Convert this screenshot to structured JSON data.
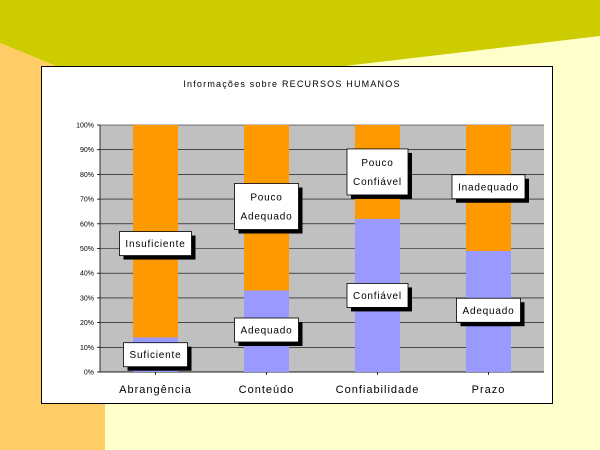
{
  "colors": {
    "slide_background": "#ffffcc",
    "slide_accent_olive": "#cccc00",
    "slide_accent_peach": "#ffcc66",
    "plot_background": "#c0c0c0",
    "series_positive": "#9999ff",
    "series_negative": "#ff9900"
  },
  "chart_data": {
    "type": "bar",
    "stacked": true,
    "title": "Informações sobre RECURSOS HUMANOS",
    "categories": [
      "Abrangência",
      "Conteúdo",
      "Confiabilidade",
      "Prazo"
    ],
    "series": [
      {
        "color": "#9999ff",
        "values": [
          14,
          33,
          62,
          49
        ]
      },
      {
        "color": "#ff9900",
        "values": [
          86,
          67,
          38,
          51
        ]
      }
    ],
    "ylim": [
      0,
      100
    ],
    "y_ticks": [
      "0%",
      "10%",
      "20%",
      "30%",
      "40%",
      "50%",
      "60%",
      "70%",
      "80%",
      "90%",
      "100%"
    ],
    "grid": true,
    "annotations": [
      {
        "category_index": 0,
        "level": 52,
        "lines": [
          "Insuficiente"
        ]
      },
      {
        "category_index": 0,
        "level": 7,
        "lines": [
          "Suficiente"
        ]
      },
      {
        "category_index": 1,
        "level": 67,
        "lines": [
          "Pouco",
          "Adequado"
        ]
      },
      {
        "category_index": 1,
        "level": 17,
        "lines": [
          "Adequado"
        ]
      },
      {
        "category_index": 2,
        "level": 81,
        "lines": [
          "Pouco",
          "Confiável"
        ]
      },
      {
        "category_index": 2,
        "level": 31,
        "lines": [
          "Confiável"
        ]
      },
      {
        "category_index": 3,
        "level": 75,
        "lines": [
          "Inadequado"
        ]
      },
      {
        "category_index": 3,
        "level": 25,
        "lines": [
          "Adequado"
        ]
      }
    ]
  }
}
